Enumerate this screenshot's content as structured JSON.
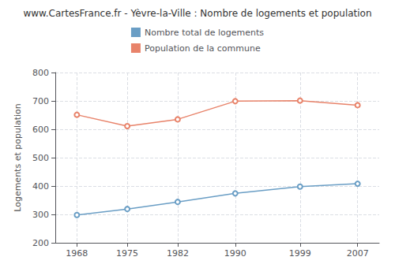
{
  "chart_data": {
    "type": "line",
    "title": "www.CartesFrance.fr - Yèvre-la-Ville : Nombre de logements et population",
    "ylabel": "Logements et population",
    "x": [
      1968,
      1975,
      1982,
      1990,
      1999,
      2007
    ],
    "series": [
      {
        "name": "Nombre total de logements",
        "color": "#6a9ec5",
        "values": [
          298,
          319,
          344,
          374,
          398,
          408
        ]
      },
      {
        "name": "Population de la commune",
        "color": "#e8836a",
        "values": [
          651,
          611,
          635,
          699,
          701,
          685
        ]
      }
    ],
    "marker": "circle",
    "xlim": [
      1965,
      2010
    ],
    "xticks": [
      1968,
      1975,
      1982,
      1990,
      1999,
      2007
    ],
    "ylim": [
      200,
      800
    ],
    "yticks": [
      200,
      300,
      400,
      500,
      600,
      700,
      800
    ],
    "grid": true,
    "legend": "top"
  }
}
